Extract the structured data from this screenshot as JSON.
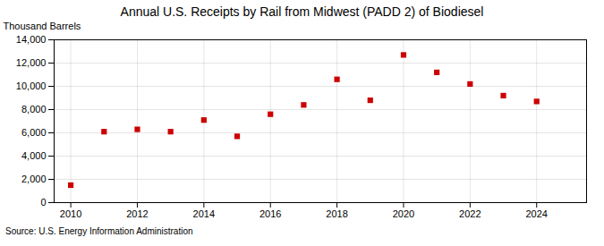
{
  "chart_data": {
    "type": "scatter",
    "title": "Annual U.S. Receipts by Rail from Midwest (PADD 2) of Biodiesel",
    "ylabel": "Thousand Barrels",
    "source": "Source: U.S. Energy Information Administration",
    "x": [
      2010,
      2011,
      2012,
      2013,
      2014,
      2015,
      2016,
      2017,
      2018,
      2019,
      2020,
      2021,
      2022,
      2023,
      2024
    ],
    "values": [
      1500,
      6100,
      6300,
      6100,
      7100,
      5700,
      7600,
      8400,
      10600,
      8800,
      12700,
      11200,
      10200,
      9200,
      8700
    ],
    "color": "#cc0000",
    "marker": "square",
    "xlim": [
      2009.5,
      2025.5
    ],
    "xticks": [
      2010,
      2012,
      2014,
      2016,
      2018,
      2020,
      2022,
      2024
    ],
    "ylim": [
      0,
      14000
    ],
    "yticks": [
      0,
      {
        "value": 2000,
        "label": "2,000"
      },
      {
        "value": 4000,
        "label": "4,000"
      },
      {
        "value": 6000,
        "label": "6,000"
      },
      {
        "value": 8000,
        "label": "8,000"
      },
      {
        "value": 10000,
        "label": "10,000"
      },
      {
        "value": 12000,
        "label": "12,000"
      },
      {
        "value": 14000,
        "label": "14,000"
      }
    ],
    "grid": true
  }
}
